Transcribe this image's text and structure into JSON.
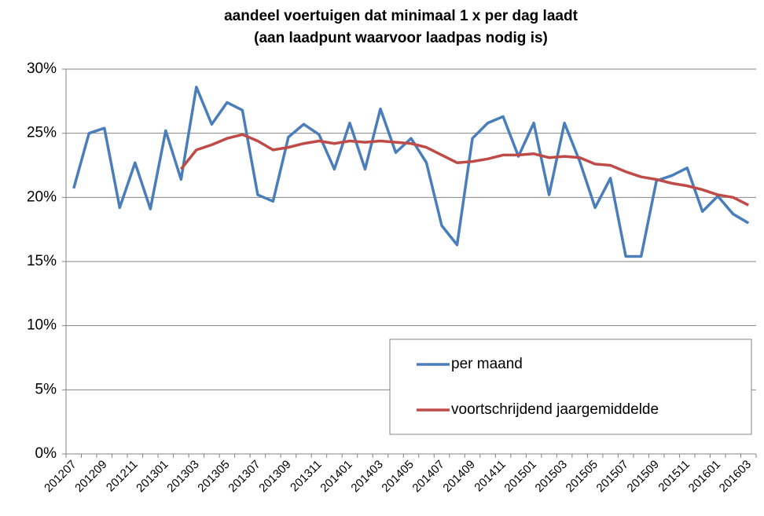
{
  "chart_data": {
    "type": "line",
    "title": [
      "aandeel voertuigen dat minimaal 1 x per dag laadt",
      "(aan laadpunt waarvoor laadpas nodig is)"
    ],
    "categories": [
      "201207",
      null,
      "201209",
      null,
      "201211",
      null,
      "201301",
      null,
      "201303",
      null,
      "201305",
      null,
      "201307",
      null,
      "201309",
      null,
      "201311",
      null,
      "201401",
      null,
      "201403",
      null,
      "201405",
      null,
      "201407",
      null,
      "201409",
      null,
      "201411",
      null,
      "201501",
      null,
      "201503",
      null,
      "201505",
      null,
      "201507",
      null,
      "201509",
      null,
      "201511",
      null,
      "201601",
      null,
      "201603"
    ],
    "series": [
      {
        "name": "per maand",
        "color": "#4a7ebb",
        "values": [
          20.7,
          25.0,
          25.4,
          19.2,
          22.7,
          19.1,
          25.2,
          21.4,
          28.6,
          25.7,
          27.4,
          26.8,
          20.2,
          19.7,
          24.7,
          25.7,
          24.9,
          22.2,
          25.8,
          22.2,
          26.9,
          23.5,
          24.6,
          22.7,
          17.8,
          16.3,
          24.6,
          25.8,
          26.3,
          23.2,
          25.8,
          20.2,
          25.8,
          22.8,
          19.2,
          21.5,
          15.4,
          15.4,
          21.3,
          21.7,
          22.3,
          18.9,
          20.1,
          18.7,
          18.0
        ]
      },
      {
        "name": "voortschrijdend jaargemiddelde",
        "color": "#be4b48",
        "values": [
          null,
          null,
          null,
          null,
          null,
          null,
          null,
          22.2,
          23.7,
          24.1,
          24.6,
          24.9,
          24.4,
          23.7,
          23.9,
          24.2,
          24.4,
          24.2,
          24.4,
          24.3,
          24.4,
          24.3,
          24.2,
          23.9,
          23.3,
          22.7,
          22.8,
          23.0,
          23.3,
          23.3,
          23.4,
          23.1,
          23.2,
          23.1,
          22.6,
          22.5,
          22.0,
          21.6,
          21.4,
          21.1,
          20.9,
          20.6,
          20.2,
          20.0,
          19.4
        ]
      }
    ],
    "ylim": [
      0,
      30
    ],
    "yticks": [
      {
        "value": 0,
        "label": "0%"
      },
      {
        "value": 5,
        "label": "5%"
      },
      {
        "value": 10,
        "label": "10%"
      },
      {
        "value": 15,
        "label": "15%"
      },
      {
        "value": 20,
        "label": "20%"
      },
      {
        "value": 25,
        "label": "25%"
      },
      {
        "value": 30,
        "label": "30%"
      }
    ],
    "grid": true,
    "legend": "lower right"
  }
}
